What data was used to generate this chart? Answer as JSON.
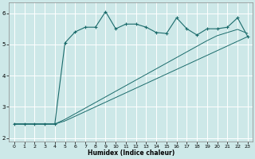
{
  "xlabel": "Humidex (Indice chaleur)",
  "background_color": "#cde8e8",
  "grid_color": "#ffffff",
  "line_color": "#1a6b6b",
  "xlim": [
    -0.5,
    23.5
  ],
  "ylim": [
    1.9,
    6.35
  ],
  "yticks": [
    2,
    3,
    4,
    5,
    6
  ],
  "xticks": [
    0,
    1,
    2,
    3,
    4,
    5,
    6,
    7,
    8,
    9,
    10,
    11,
    12,
    13,
    14,
    15,
    16,
    17,
    18,
    19,
    20,
    21,
    22,
    23
  ],
  "curve1_x": [
    0,
    1,
    2,
    3,
    4,
    5,
    6,
    7,
    8,
    9,
    10,
    11,
    12,
    13,
    14,
    15,
    16,
    17,
    18,
    19,
    20,
    21,
    22,
    23
  ],
  "curve1_y": [
    2.45,
    2.45,
    2.45,
    2.45,
    2.45,
    5.05,
    5.4,
    5.55,
    5.55,
    6.05,
    5.5,
    5.65,
    5.65,
    5.55,
    5.38,
    5.35,
    5.85,
    5.5,
    5.3,
    5.5,
    5.5,
    5.55,
    5.85,
    5.25
  ],
  "curve2_x": [
    0,
    1,
    2,
    3,
    4,
    5,
    6,
    7,
    8,
    9,
    10,
    11,
    12,
    13,
    14,
    15,
    16,
    17,
    18,
    19,
    20,
    21,
    22,
    23
  ],
  "curve2_y": [
    2.45,
    2.45,
    2.45,
    2.45,
    2.45,
    2.55,
    2.7,
    2.85,
    3.0,
    3.15,
    3.3,
    3.45,
    3.6,
    3.75,
    3.9,
    4.05,
    4.2,
    4.35,
    4.5,
    4.65,
    4.8,
    4.95,
    5.1,
    5.25
  ],
  "curve3_x": [
    0,
    1,
    2,
    3,
    4,
    5,
    6,
    7,
    8,
    9,
    10,
    11,
    12,
    13,
    14,
    15,
    16,
    17,
    18,
    19,
    20,
    21,
    22,
    23
  ],
  "curve3_y": [
    2.45,
    2.45,
    2.45,
    2.45,
    2.45,
    2.6,
    2.78,
    2.96,
    3.14,
    3.32,
    3.5,
    3.68,
    3.86,
    4.04,
    4.22,
    4.4,
    4.58,
    4.76,
    4.94,
    5.12,
    5.28,
    5.38,
    5.48,
    5.35
  ]
}
